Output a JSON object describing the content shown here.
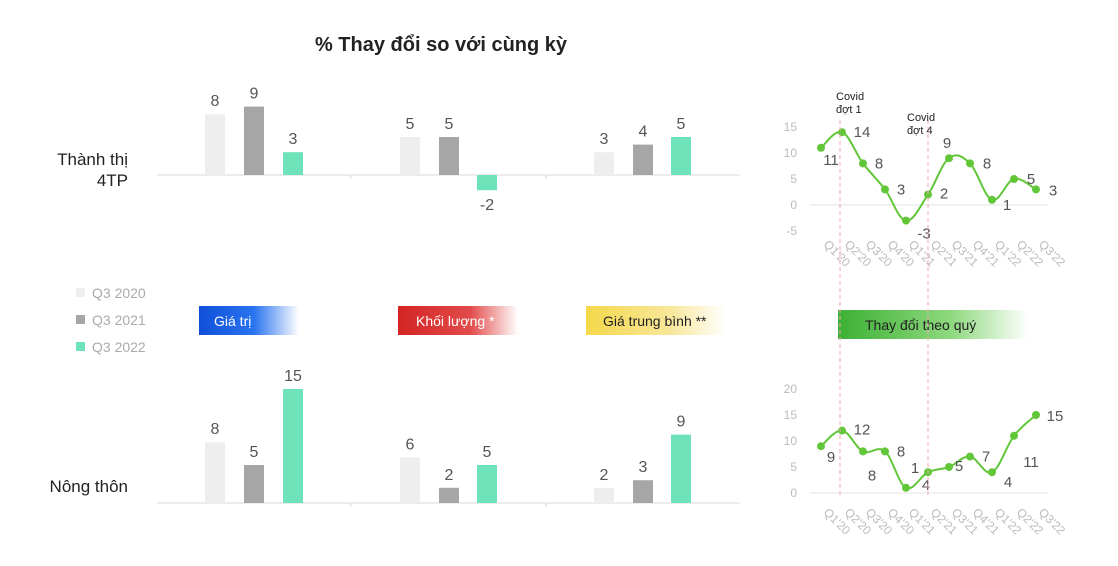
{
  "title": "% Thay đổi so với cùng kỳ",
  "colors": {
    "q3_2020": "#eeeeee",
    "q3_2021": "#a6a6a6",
    "q3_2022": "#6ee2b9",
    "line": "#62c639",
    "banner_value": "#1155dd",
    "banner_volume": "#d42f2f",
    "banner_price": "#f5d94a",
    "banner_qoq": "#45b83a"
  },
  "legend": [
    "Q3 2020",
    "Q3 2021",
    "Q3 2022"
  ],
  "banners": {
    "value": "Giá trị",
    "volume": "Khối lượng *",
    "price": "Giá trung bình **",
    "qoq": "Thay đổi theo quý"
  },
  "chart_data": [
    {
      "type": "bar",
      "title": "% Thay đổi so với cùng kỳ",
      "row_labels": [
        "Thành thị 4TP",
        "Nông thôn"
      ],
      "groups": [
        "Giá trị",
        "Khối lượng *",
        "Giá trung bình **"
      ],
      "series_names": [
        "Q3 2020",
        "Q3 2021",
        "Q3 2022"
      ],
      "urban": [
        [
          8,
          9,
          3
        ],
        [
          5,
          5,
          -2
        ],
        [
          3,
          4,
          5
        ]
      ],
      "rural": [
        [
          8,
          5,
          15
        ],
        [
          6,
          2,
          5
        ],
        [
          2,
          3,
          9
        ]
      ]
    },
    {
      "type": "line",
      "name": "Thành thị 4TP - Thay đổi theo quý",
      "x": [
        "Q1'20",
        "Q2'20",
        "Q3'20",
        "Q4'20",
        "Q1'21",
        "Q2'21",
        "Q3'21",
        "Q4'21",
        "Q1'22",
        "Q2'22",
        "Q3'22"
      ],
      "values": [
        11,
        14,
        8,
        3,
        -3,
        2,
        9,
        8,
        1,
        5,
        3
      ],
      "yticks": [
        15,
        10,
        5,
        0,
        -5
      ],
      "ylim": [
        -5,
        15
      ],
      "annotations": [
        {
          "label1": "Covid",
          "label2": "đợt 1",
          "at": "Q2'20"
        },
        {
          "label1": "Covid",
          "label2": "đợt 4",
          "at": "Q2'21"
        }
      ]
    },
    {
      "type": "line",
      "name": "Nông thôn - Thay đổi theo quý",
      "x": [
        "Q1'20",
        "Q2'20",
        "Q3'20",
        "Q4'20",
        "Q1'21",
        "Q2'21",
        "Q3'21",
        "Q4'21",
        "Q1'22",
        "Q2'22",
        "Q3'22"
      ],
      "values": [
        9,
        12,
        8,
        8,
        1,
        4,
        5,
        7,
        4,
        11,
        15
      ],
      "yticks": [
        20,
        15,
        10,
        5,
        0
      ],
      "ylim": [
        0,
        20
      ]
    }
  ]
}
